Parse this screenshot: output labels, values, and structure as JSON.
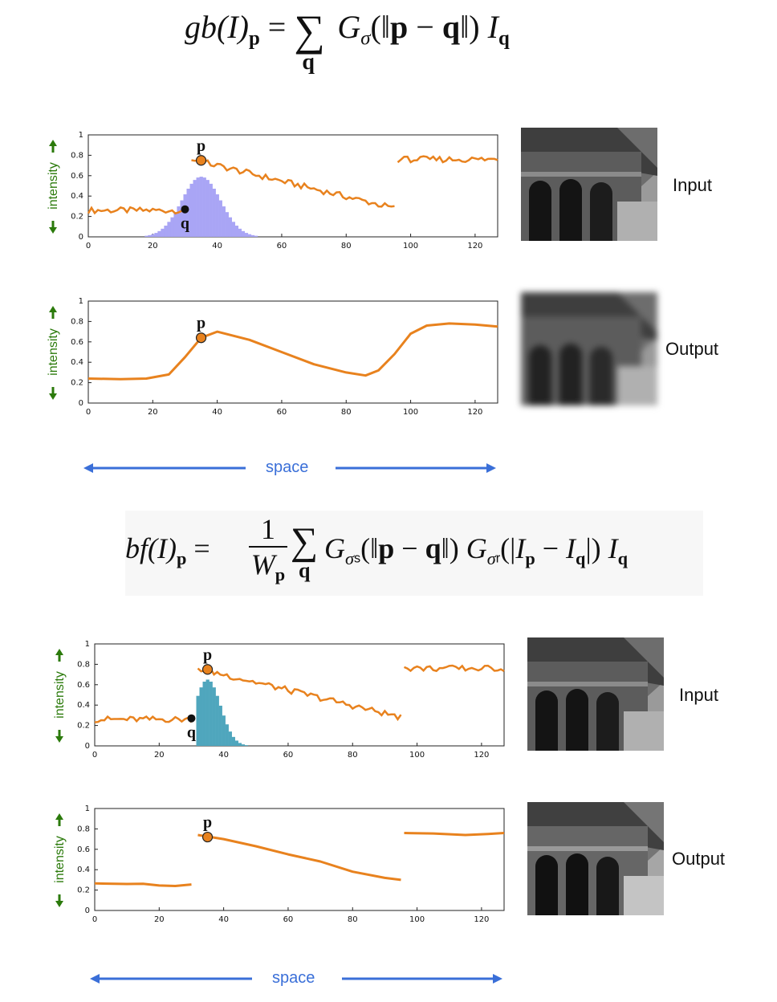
{
  "equations": {
    "gaussian": {
      "lhs_func": "gb",
      "lhs_arg": "(I)",
      "lhs_sub": "p",
      "eq": "=",
      "sum_sub": "q",
      "kernel": "G",
      "kernel_sub": "σ",
      "norm_open": "(‖",
      "p": "p",
      "minus": " − ",
      "q": "q",
      "norm_close": "‖)",
      "intensity": "I",
      "intensity_sub": "q"
    },
    "bilateral": {
      "lhs_func": "bf",
      "lhs_arg": "(I)",
      "lhs_sub": "p",
      "eq": "=",
      "frac_num": "1",
      "frac_den": "W",
      "frac_den_sub": "p",
      "sum_sub": "q",
      "kernel_s": "G",
      "kernel_s_sub": "σ",
      "kernel_s_subsub": "s",
      "norm_open": "(‖",
      "p": "p",
      "minus": " − ",
      "q": "q",
      "norm_close": "‖)",
      "kernel_r": "G",
      "kernel_r_sub": "σ",
      "kernel_r_subsub": "r",
      "abs_open": "(|",
      "Ip": "I",
      "Ip_sub": "p",
      "minus2": " − ",
      "Iq": "I",
      "Iq_sub": "q",
      "abs_close": "|)",
      "intensity": "I",
      "intensity_sub": "q"
    }
  },
  "labels": {
    "intensity": "intensity",
    "space": "space",
    "input": "Input",
    "output": "Output",
    "p": "p",
    "q": "q"
  },
  "colors": {
    "signal": "#e8821e",
    "gauss_kernel": "#a9a5f5",
    "bilateral_kernel": "#4fa6bd",
    "axis_arrow": "#2b7a0b",
    "space_arrow": "#3a6fd8"
  },
  "chart_data": [
    {
      "type": "line",
      "id": "gauss-input",
      "xlim": [
        0,
        127
      ],
      "ylim": [
        0,
        1
      ],
      "xticks": [
        0,
        20,
        40,
        60,
        80,
        100,
        120
      ],
      "yticks": [
        0,
        0.2,
        0.4,
        0.6,
        0.8,
        1
      ],
      "segments": [
        {
          "x0": 0,
          "x1": 30,
          "y0": 0.26,
          "y1": 0.26
        },
        {
          "x0": 32,
          "x1": 95,
          "y0": 0.76,
          "y1": 0.28
        },
        {
          "x0": 96,
          "x1": 127,
          "y0": 0.76,
          "y1": 0.76
        }
      ],
      "kernel": {
        "center": 35,
        "sigma": 6,
        "peak": 0.59,
        "cutoff_left": 18,
        "cutoff_right": 52
      },
      "p": {
        "x": 35,
        "y": 0.75
      },
      "q": {
        "x": 30,
        "y": 0.27
      }
    },
    {
      "type": "line",
      "id": "gauss-output",
      "xlim": [
        0,
        127
      ],
      "ylim": [
        0,
        1
      ],
      "xticks": [
        0,
        20,
        40,
        60,
        80,
        100,
        120
      ],
      "yticks": [
        0,
        0.2,
        0.4,
        0.6,
        0.8,
        1
      ],
      "points": [
        [
          0,
          0.24
        ],
        [
          10,
          0.235
        ],
        [
          18,
          0.24
        ],
        [
          25,
          0.28
        ],
        [
          30,
          0.45
        ],
        [
          35,
          0.64
        ],
        [
          40,
          0.7
        ],
        [
          50,
          0.62
        ],
        [
          60,
          0.5
        ],
        [
          70,
          0.38
        ],
        [
          80,
          0.3
        ],
        [
          86,
          0.27
        ],
        [
          90,
          0.32
        ],
        [
          95,
          0.48
        ],
        [
          100,
          0.68
        ],
        [
          105,
          0.76
        ],
        [
          112,
          0.78
        ],
        [
          120,
          0.77
        ],
        [
          127,
          0.75
        ]
      ],
      "p": {
        "x": 35,
        "y": 0.64
      }
    },
    {
      "type": "line",
      "id": "bilateral-input",
      "xlim": [
        0,
        127
      ],
      "ylim": [
        0,
        1
      ],
      "xticks": [
        0,
        20,
        40,
        60,
        80,
        100,
        120
      ],
      "yticks": [
        0,
        0.2,
        0.4,
        0.6,
        0.8,
        1
      ],
      "segments": [
        {
          "x0": 0,
          "x1": 30,
          "y0": 0.26,
          "y1": 0.26
        },
        {
          "x0": 32,
          "x1": 95,
          "y0": 0.76,
          "y1": 0.28
        },
        {
          "x0": 96,
          "x1": 127,
          "y0": 0.76,
          "y1": 0.76
        }
      ],
      "kernel": {
        "center": 35,
        "sigma": 4,
        "peak": 0.65,
        "cutoff_left": 32,
        "cutoff_right": 52
      },
      "p": {
        "x": 35,
        "y": 0.75
      },
      "q": {
        "x": 30,
        "y": 0.27
      }
    },
    {
      "type": "line",
      "id": "bilateral-output",
      "xlim": [
        0,
        127
      ],
      "ylim": [
        0,
        1
      ],
      "xticks": [
        0,
        20,
        40,
        60,
        80,
        100,
        120
      ],
      "yticks": [
        0,
        0.2,
        0.4,
        0.6,
        0.8,
        1
      ],
      "segments_pts": [
        [
          [
            0,
            0.265
          ],
          [
            10,
            0.26
          ],
          [
            15,
            0.262
          ],
          [
            20,
            0.245
          ],
          [
            25,
            0.24
          ],
          [
            30,
            0.255
          ]
        ],
        [
          [
            32,
            0.74
          ],
          [
            40,
            0.7
          ],
          [
            50,
            0.63
          ],
          [
            60,
            0.55
          ],
          [
            70,
            0.48
          ],
          [
            80,
            0.38
          ],
          [
            90,
            0.32
          ],
          [
            95,
            0.3
          ]
        ],
        [
          [
            96,
            0.76
          ],
          [
            105,
            0.755
          ],
          [
            115,
            0.74
          ],
          [
            122,
            0.75
          ],
          [
            127,
            0.76
          ]
        ]
      ],
      "p": {
        "x": 35,
        "y": 0.72
      }
    }
  ]
}
